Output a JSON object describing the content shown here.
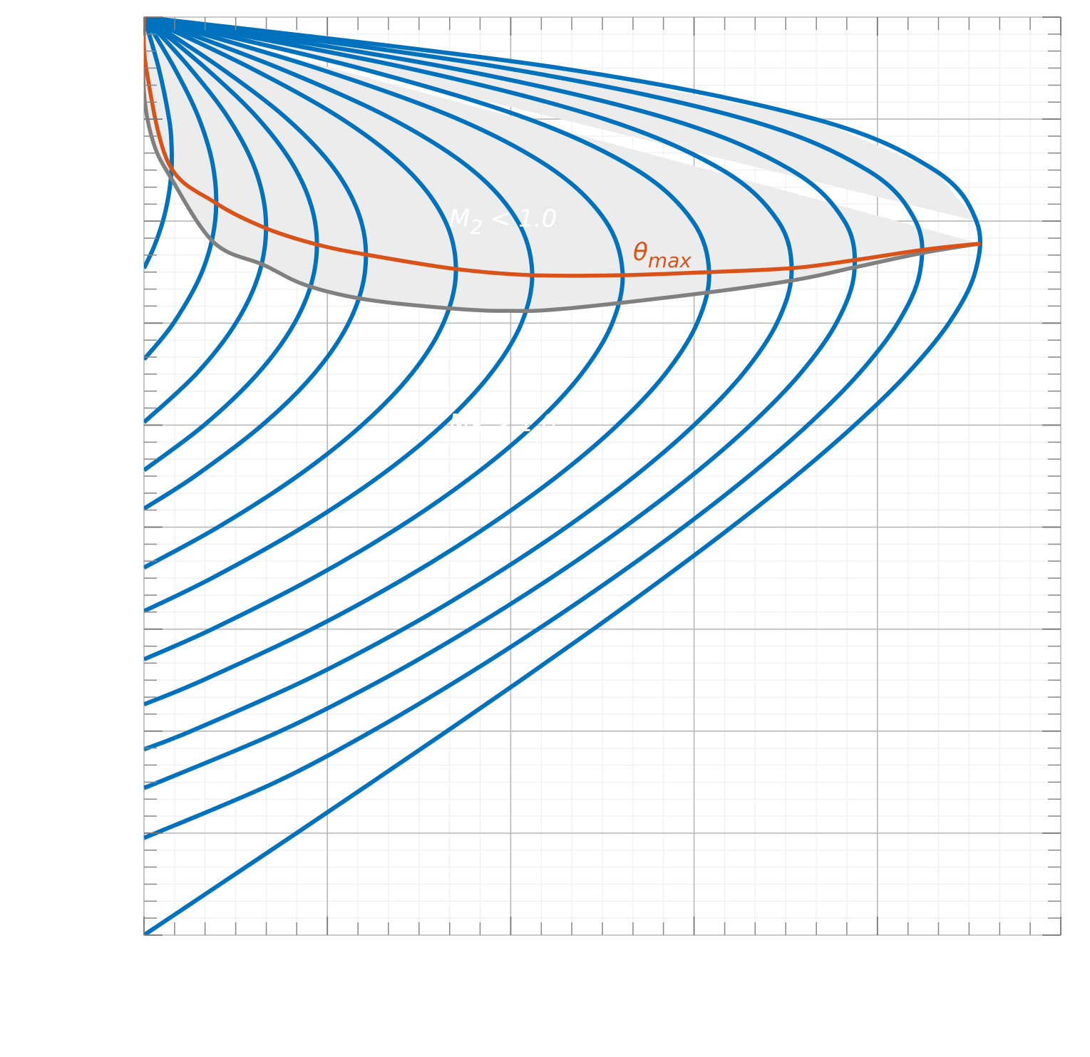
{
  "chart_data": {
    "type": "line",
    "xlim": [
      0,
      50
    ],
    "ylim": [
      0,
      90
    ],
    "xticks": [
      0,
      10,
      20,
      30,
      40,
      50
    ],
    "yticks": [
      0,
      10,
      20,
      30,
      40,
      50,
      60,
      70,
      80,
      90
    ],
    "xminorticks": [
      1.67,
      3.33,
      5,
      6.67,
      8.33,
      11.67,
      13.33,
      15,
      16.67,
      18.33,
      21.67,
      23.33,
      25,
      26.67,
      28.33,
      31.67,
      33.33,
      35,
      36.67,
      38.33,
      41.67,
      43.33,
      45,
      46.67,
      48.33
    ],
    "yminorticks": [
      1.67,
      3.33,
      5,
      6.67,
      8.33,
      11.67,
      13.33,
      15,
      16.67,
      18.33,
      21.67,
      23.33,
      25,
      26.67,
      28.33,
      31.67,
      33.33,
      35,
      36.67,
      38.33,
      41.67,
      43.33,
      45,
      46.67,
      48.33,
      51.67,
      53.33,
      55,
      56.67,
      58.33,
      61.67,
      63.33,
      65,
      66.67,
      68.33,
      71.67,
      73.33,
      75,
      76.67,
      78.33,
      81.67,
      83.33,
      85,
      86.67,
      88.33
    ],
    "grid": true,
    "series": [
      {
        "color": "#0072bd",
        "x": [
          0,
          0.55,
          1.03,
          1.34,
          1.5,
          1.5,
          1.37,
          0.8,
          0
        ],
        "y": [
          65.38,
          67.5,
          70,
          72.5,
          75,
          77.5,
          80,
          85,
          90
        ]
      },
      {
        "color": "#0072bd",
        "x": [
          0,
          1.61,
          3.16,
          3.88,
          3.8,
          3.01,
          1.66,
          0
        ],
        "y": [
          56.44,
          60,
          65,
          70,
          75,
          80,
          85,
          90
        ]
      },
      {
        "color": "#0072bd",
        "x": [
          0,
          2.84,
          5.01,
          6.3,
          6.65,
          6.08,
          4.64,
          2.51,
          0
        ],
        "y": [
          50.28,
          55,
          60,
          65,
          70,
          75,
          80,
          85,
          90
        ]
      },
      {
        "color": "#0072bd",
        "x": [
          0,
          3.28,
          6.18,
          8.21,
          9.28,
          9.32,
          8.29,
          6.25,
          3.36,
          0
        ],
        "y": [
          45.58,
          50,
          55,
          60,
          65,
          70,
          75,
          80,
          85,
          90
        ]
      },
      {
        "color": "#0072bd",
        "x": [
          0,
          2.78,
          6.44,
          9.26,
          11.16,
          12.05,
          11.84,
          10.43,
          7.82,
          4.2,
          0
        ],
        "y": [
          41.81,
          45,
          50,
          55,
          60,
          65,
          70,
          75,
          80,
          85,
          90
        ]
      },
      {
        "color": "#0072bd",
        "x": [
          0,
          4.04,
          8.37,
          11.89,
          14.58,
          16.33,
          17.01,
          16.43,
          14.39,
          10.81,
          5.83,
          0
        ],
        "y": [
          36.03,
          40,
          45,
          50,
          55,
          60,
          65,
          70,
          75,
          80,
          85,
          90
        ]
      },
      {
        "color": "#0072bd",
        "x": [
          0,
          3.7,
          8.67,
          12.86,
          16.28,
          18.89,
          20.59,
          21.17,
          20.37,
          17.91,
          13.54,
          7.36,
          0
        ],
        "y": [
          31.76,
          35,
          40,
          45,
          50,
          55,
          60,
          65,
          70,
          75,
          80,
          85,
          90
        ]
      },
      {
        "color": "#0072bd",
        "x": [
          0,
          3.72,
          9.21,
          13.92,
          17.93,
          21.27,
          23.85,
          25.54,
          26.1,
          25.18,
          22.34,
          17.13,
          9.42,
          0
        ],
        "y": [
          27.04,
          30,
          35,
          40,
          45,
          50,
          55,
          60,
          65,
          70,
          75,
          80,
          85,
          90
        ]
      },
      {
        "color": "#0072bd",
        "x": [
          0,
          3.22,
          9.15,
          14.24,
          18.68,
          22.55,
          25.82,
          28.42,
          30.17,
          30.82,
          29.92,
          26.89,
          20.97,
          11.74,
          0
        ],
        "y": [
          22.62,
          25,
          30,
          35,
          40,
          45,
          50,
          55,
          60,
          65,
          70,
          75,
          80,
          85,
          90
        ]
      },
      {
        "color": "#0072bd",
        "x": [
          0,
          2.57,
          8.82,
          14.14,
          18.83,
          23.04,
          26.77,
          30,
          32.65,
          34.52,
          35.32,
          34.58,
          31.55,
          25.13,
          14.38,
          0
        ],
        "y": [
          18.21,
          20,
          25,
          30,
          35,
          40,
          45,
          50,
          55,
          60,
          65,
          70,
          75,
          80,
          85,
          90
        ]
      },
      {
        "color": "#0072bd",
        "x": [
          0,
          0.8,
          7.44,
          12.94,
          17.78,
          22.18,
          26.2,
          29.85,
          33.07,
          35.77,
          37.76,
          38.74,
          38.2,
          35.3,
          28.66,
          16.76,
          0
        ],
        "y": [
          14.48,
          15,
          20,
          25,
          30,
          35,
          40,
          45,
          50,
          55,
          60,
          65,
          70,
          75,
          80,
          85,
          90
        ]
      },
      {
        "color": "#0072bd",
        "x": [
          0,
          0.64,
          7.19,
          12.44,
          17.13,
          21.49,
          25.58,
          29.42,
          32.98,
          36.2,
          38.97,
          41.11,
          42.32,
          42.08,
          39.45,
          32.78,
          19.72,
          0
        ],
        "y": [
          9.59,
          10,
          15,
          20,
          25,
          30,
          35,
          40,
          45,
          50,
          55,
          60,
          65,
          70,
          75,
          80,
          85,
          90
        ]
      },
      {
        "color": "#0072bd",
        "x": [
          0,
          4.16,
          8.32,
          12.44,
          16.53,
          20.56,
          24.51,
          28.34,
          32.04,
          35.54,
          38.76,
          41.61,
          43.9,
          45.33,
          45.4,
          43.12,
          36.61,
          22.69,
          0
        ],
        "y": [
          0,
          5,
          10,
          15,
          20,
          25,
          30,
          35,
          40,
          45,
          50,
          55,
          60,
          65,
          70,
          75,
          80,
          85,
          90
        ]
      },
      {
        "color": "#808080",
        "x": [
          0,
          0,
          0.51,
          1.48,
          3.81,
          6.53,
          8.86,
          12.17,
          17.03,
          20,
          22.86,
          29.86,
          35.42,
          38.84,
          42.53,
          45.61
        ],
        "y": [
          90,
          82.6,
          77.7,
          74.2,
          67.9,
          65.7,
          63.7,
          62.3,
          61.4,
          61.2,
          61.4,
          62.8,
          64.2,
          65.5,
          66.9,
          67.8
        ]
      },
      {
        "color": "#d95319",
        "x": [
          0,
          0.12,
          1.36,
          3.89,
          6.65,
          9.45,
          12.17,
          17.03,
          21.15,
          26.09,
          30.83,
          35.42,
          38.84,
          42.53,
          45.61
        ],
        "y": [
          90,
          85,
          75.6,
          71.8,
          69.3,
          67.7,
          66.7,
          65.3,
          64.7,
          64.7,
          65,
          65.4,
          66.2,
          67.2,
          67.8
        ]
      }
    ],
    "fill_color": "#ececec",
    "annotations": [
      {
        "text": "M",
        "sub": "2",
        "rest": " < 1.0",
        "color": "#ffffff"
      },
      {
        "text": "M",
        "sub": "2",
        "rest": " > 1.0",
        "color": "#ffffff"
      },
      {
        "text": "θ",
        "sub": "max",
        "color": "#d95319"
      }
    ]
  }
}
